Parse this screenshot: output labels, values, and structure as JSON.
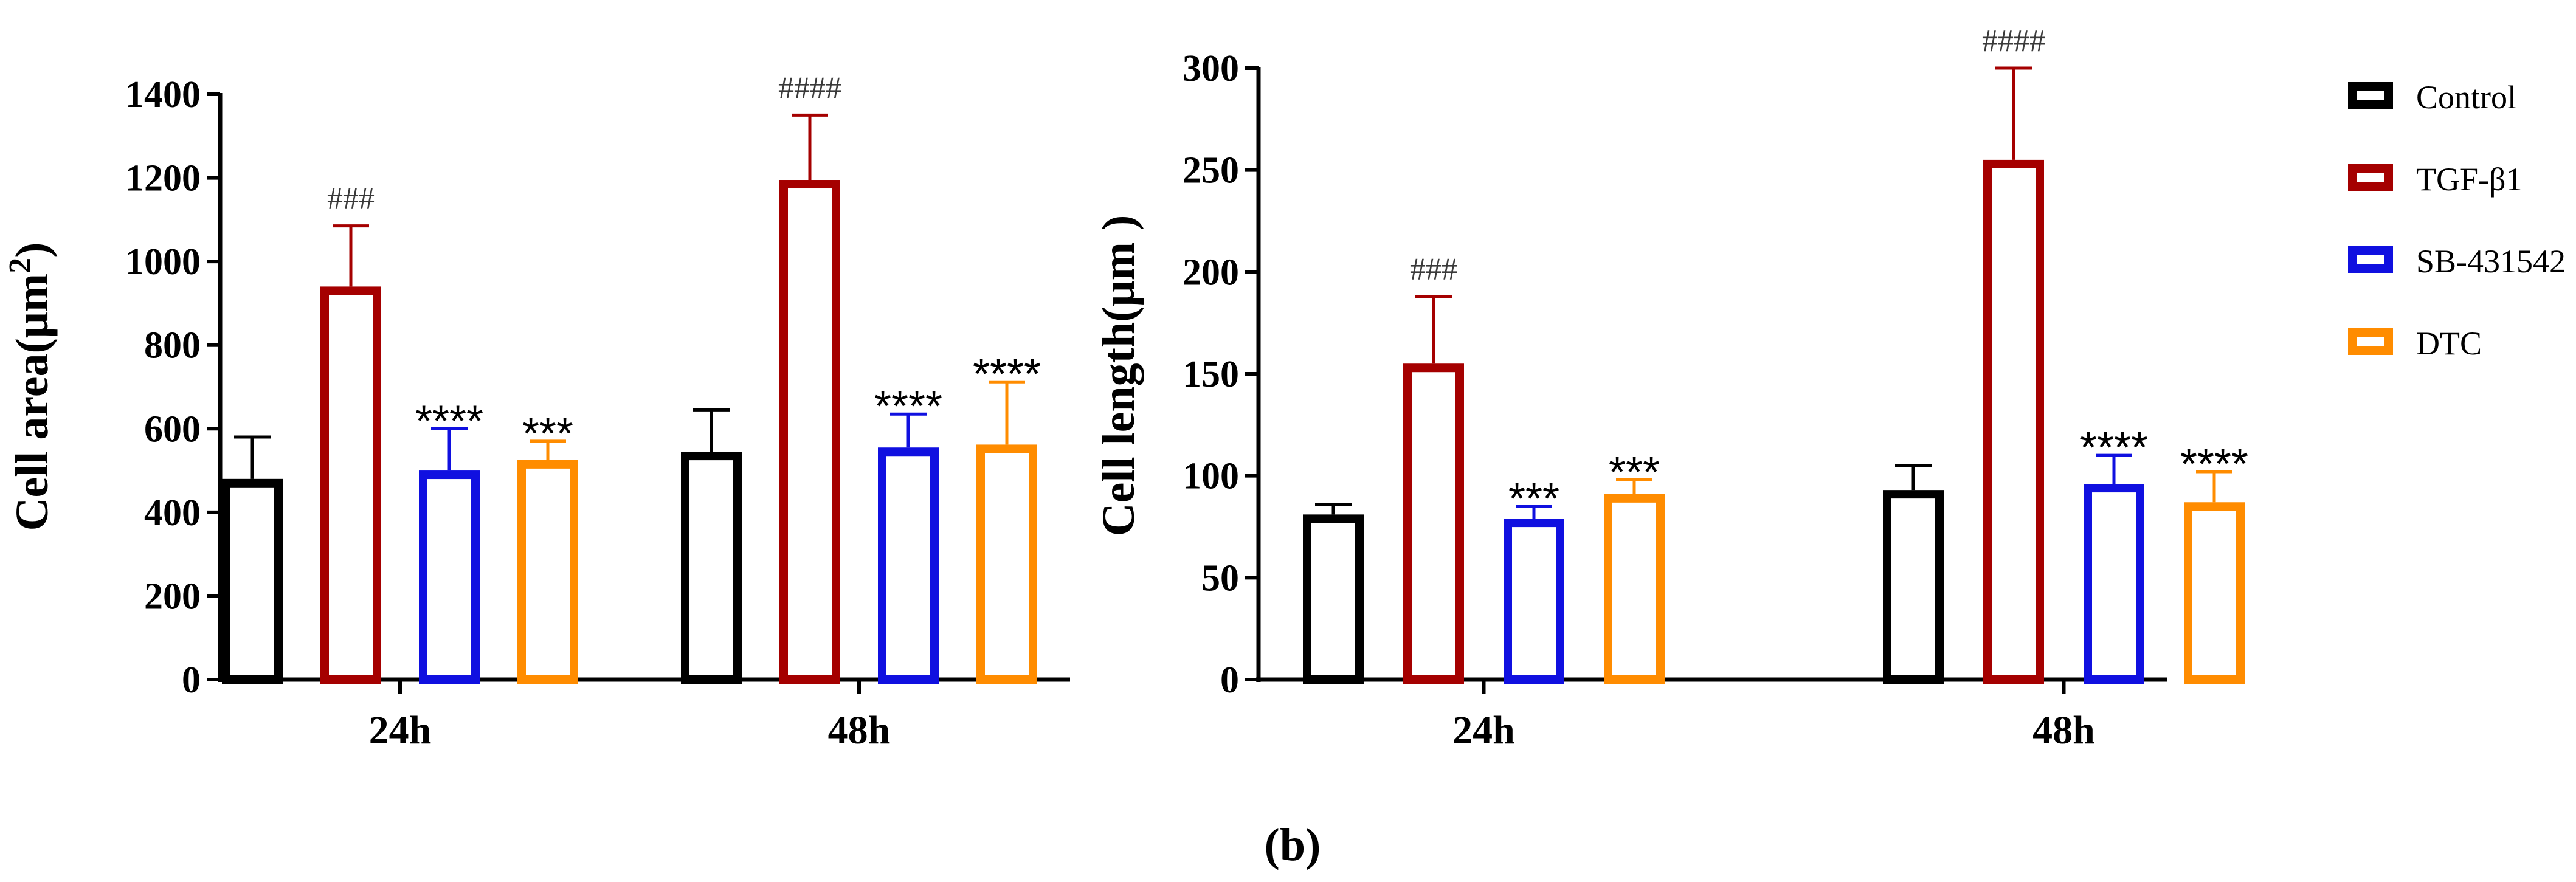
{
  "chart_data": [
    {
      "type": "bar",
      "ylabel": "Cell area(μm²)",
      "ylabel_main": "Cell area(μm",
      "ylabel_sup": "2",
      "ylabel_close": ")",
      "categories": [
        "24h",
        "48h"
      ],
      "ylim": [
        0,
        1400
      ],
      "yticks": [
        0,
        200,
        400,
        600,
        800,
        1000,
        1200,
        1400
      ],
      "series": [
        {
          "name": "Control",
          "color": "#000000",
          "values": [
            480,
            545
          ],
          "errors": [
            100,
            100
          ],
          "labels": [
            "",
            ""
          ]
        },
        {
          "name": "TGF-β1",
          "color": "#a50000",
          "values": [
            940,
            1195
          ],
          "errors": [
            145,
            155
          ],
          "labels": [
            "###",
            "####"
          ]
        },
        {
          "name": "SB-431542",
          "color": "#1010e0",
          "values": [
            500,
            555
          ],
          "errors": [
            100,
            80
          ],
          "labels": [
            "****",
            "****"
          ]
        },
        {
          "name": "DTC",
          "color": "#ff8c00",
          "values": [
            525,
            562
          ],
          "errors": [
            45,
            150
          ],
          "labels": [
            "***",
            "****"
          ]
        }
      ]
    },
    {
      "type": "bar",
      "ylabel": "Cell length(μm )",
      "categories": [
        "24h",
        "48h"
      ],
      "ylim": [
        0,
        300
      ],
      "yticks": [
        0,
        50,
        100,
        150,
        200,
        250,
        300
      ],
      "series": [
        {
          "name": "Control",
          "color": "#000000",
          "values": [
            81,
            93
          ],
          "errors": [
            5,
            12
          ],
          "labels": [
            "",
            ""
          ]
        },
        {
          "name": "TGF-β1",
          "color": "#a50000",
          "values": [
            155,
            255
          ],
          "errors": [
            33,
            45
          ],
          "labels": [
            "###",
            "####"
          ]
        },
        {
          "name": "SB-431542",
          "color": "#1010e0",
          "values": [
            79,
            96
          ],
          "errors": [
            6,
            14
          ],
          "labels": [
            "***",
            "****"
          ]
        },
        {
          "name": "DTC",
          "color": "#ff8c00",
          "values": [
            91,
            87
          ],
          "errors": [
            7,
            15
          ],
          "labels": [
            "***",
            "****"
          ]
        }
      ]
    }
  ],
  "legend": [
    {
      "name": "Control",
      "color": "#000000"
    },
    {
      "name": "TGF-β1",
      "color": "#a50000"
    },
    {
      "name": "SB-431542",
      "color": "#1010e0"
    },
    {
      "name": "DTC",
      "color": "#ff8c00"
    }
  ],
  "panel_label": "(b)"
}
